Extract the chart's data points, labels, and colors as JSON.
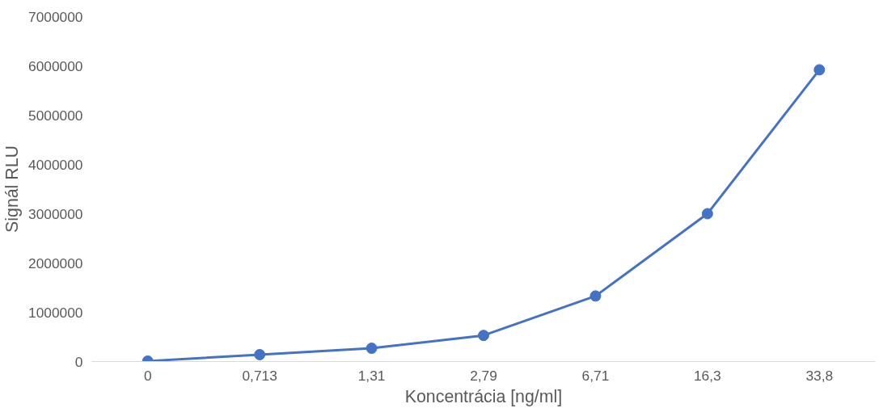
{
  "chart_data": {
    "type": "line",
    "xlabel": "Koncentrácia [ng/ml]",
    "ylabel": "Signál RLU",
    "categories": [
      "0",
      "0,713",
      "1,31",
      "2,79",
      "6,71",
      "16,3",
      "33,8"
    ],
    "series": [
      {
        "color": "#4472c4",
        "values": [
          10000,
          140000,
          270000,
          530000,
          1330000,
          3000000,
          5920000
        ]
      }
    ],
    "ylim": [
      0,
      7000000
    ],
    "yticks": [
      0,
      1000000,
      2000000,
      3000000,
      4000000,
      5000000,
      6000000,
      7000000
    ],
    "grid": false,
    "marker": "circle",
    "line_style": "solid"
  }
}
